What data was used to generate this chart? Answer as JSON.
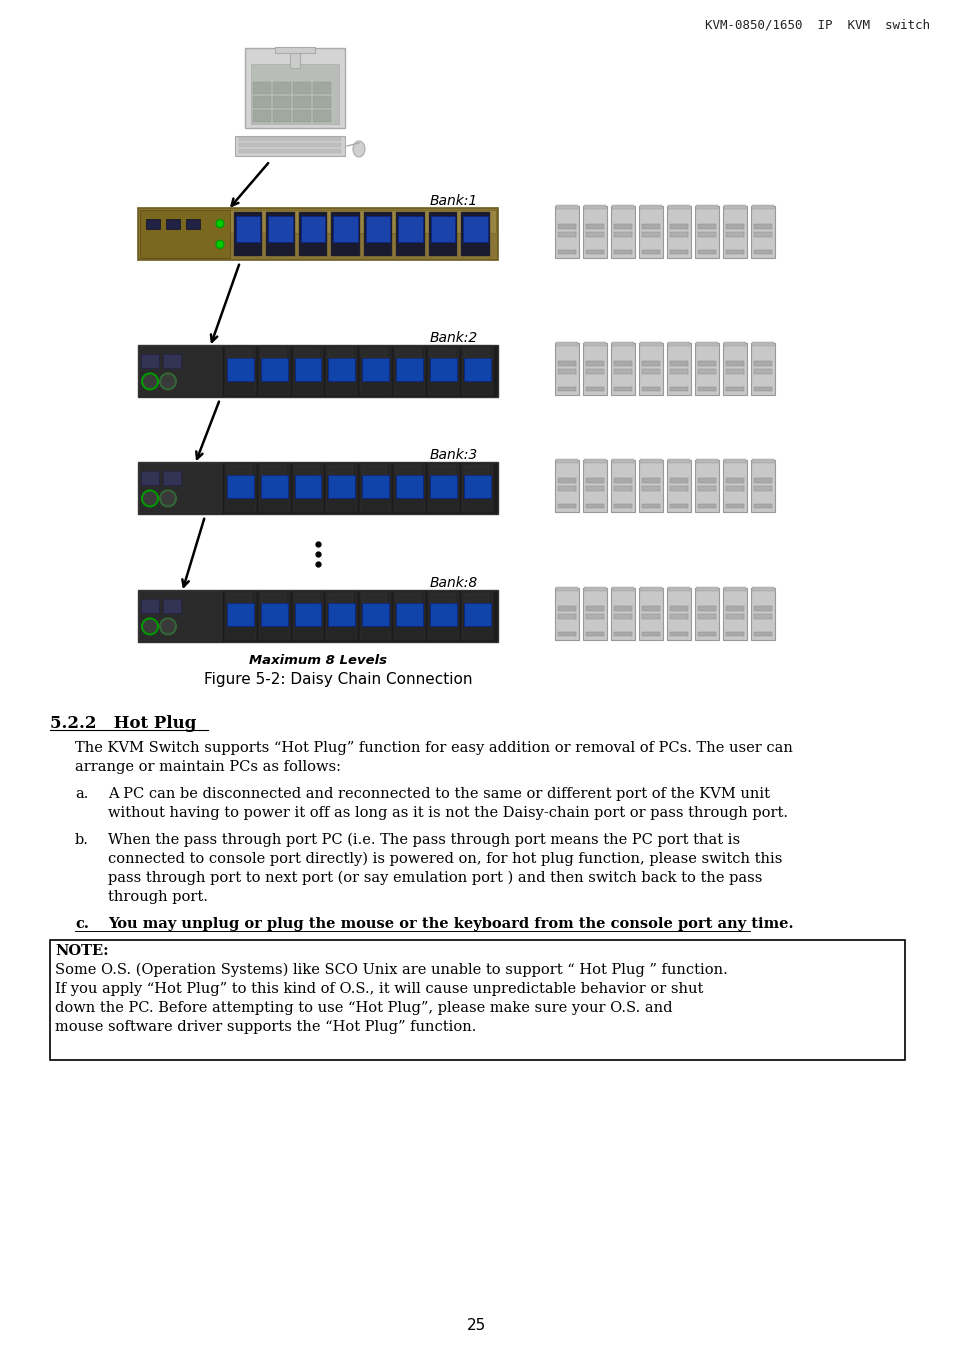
{
  "header_text": "KVM-0850/1650  IP  KVM  switch",
  "figure_caption_italic": "Maximum 8 Levels",
  "figure_caption": "Figure 5-2: Daisy Chain Connection",
  "section_title": "5.2.2   Hot Plug",
  "intro_text": "The KVM Switch supports “Hot Plug” function for easy addition or removal of PCs. The user can arrange or maintain PCs as follows:",
  "item_a_label": "a.",
  "item_a": "A PC can be disconnected and reconnected to the same or different port of the KVM unit without having to power it off as long as it is not the Daisy-chain port or pass through port.",
  "item_b_label": "b.",
  "item_b_line1": "When the pass through port PC (i.e. The pass through port means the PC port that is",
  "item_b_line2": "connected to console port directly) is powered on, for hot plug function, please switch this",
  "item_b_line3": "pass through port to next port (or say emulation port ) and then switch back to the pass",
  "item_b_line4": "through port.",
  "item_c_label": "c.",
  "item_c": "You may unplug or plug the mouse or the keyboard from the console port any time.",
  "note_label": "NOTE:",
  "note_line1": "Some O.S. (Operation Systems) like SCO Unix are unable to support “ Hot Plug ” function.",
  "note_line2": "If you apply “Hot Plug” to this kind of O.S., it will cause unpredictable behavior or shut",
  "note_line3": "down the PC. Before attempting to use “Hot Plug”, please make sure your O.S. and",
  "note_line4": "mouse software driver supports the “Hot Plug” function.",
  "page_number": "25",
  "bank_labels": [
    "Bank:1",
    "Bank:2",
    "Bank:3",
    "Bank:8"
  ],
  "background_color": "#ffffff",
  "text_color": "#000000",
  "kvm_gold_face": "#8B7535",
  "kvm_gold_edge": "#6B5a20",
  "kvm_dark_face": "#1c1c1c",
  "kvm_dark_edge": "#333333",
  "pc_face": "#c8c8c8",
  "pc_edge": "#999999",
  "monitor_face": "#cccccc",
  "monitor_screen": "#a8b0a8"
}
